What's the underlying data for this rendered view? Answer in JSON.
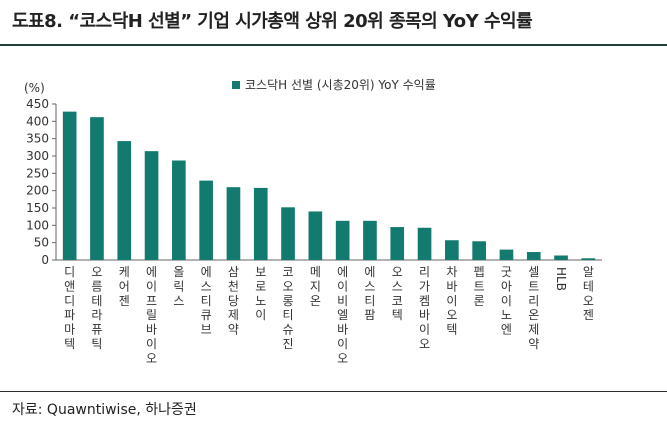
{
  "header": {
    "title": "도표8. “코스닥H 선별” 기업 시가총액 상위 20위 종목의 YoY 수익률"
  },
  "footer": {
    "source": "자료: Quawntiwise, 하나증권"
  },
  "colors": {
    "bar": "#127a6e",
    "rule": "#1e3f3a",
    "text": "#222222"
  },
  "chart_data": {
    "type": "bar",
    "unit_label": "(%)",
    "legend": {
      "label": "코스닥H 선별 (시총20위) YoY 수익률",
      "position": "top-center"
    },
    "ylim": [
      0,
      450
    ],
    "yticks": [
      0,
      50,
      100,
      150,
      200,
      250,
      300,
      350,
      400,
      450
    ],
    "grid": false,
    "categories": [
      "디앤디파마텍",
      "오름테라퓨틱",
      "케어젠",
      "에이프릴바이오",
      "올릭스",
      "에스티큐브",
      "삼천당제약",
      "보로노이",
      "코오롱티슈진",
      "메지온",
      "에이비엘바이오",
      "에스티팜",
      "오스코텍",
      "리가켐바이오",
      "차바이오텍",
      "펩트론",
      "굿아이노엔",
      "셀트리온제약",
      "HLB",
      "알테오젠"
    ],
    "series": [
      {
        "values": [
          428,
          412,
          343,
          314,
          287,
          229,
          210,
          208,
          152,
          140,
          113,
          113,
          95,
          93,
          57,
          54,
          30,
          23,
          13,
          5
        ]
      }
    ]
  }
}
